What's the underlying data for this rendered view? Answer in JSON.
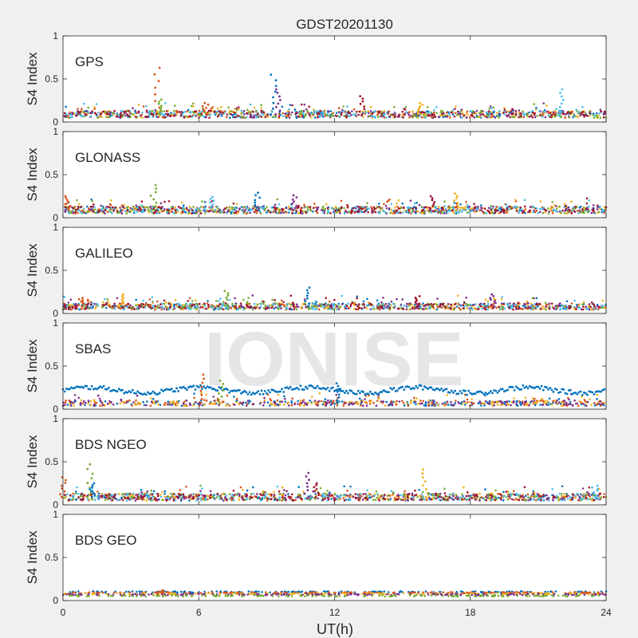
{
  "figure": {
    "title": "GDST20201130",
    "xlabel": "UT(h)",
    "ylabel": "S4 Index",
    "watermark": "IONISE",
    "background": "#f0f0f0",
    "axes_background": "#ffffff",
    "xlim": [
      0,
      24
    ],
    "xticks": [
      0,
      6,
      12,
      18,
      24
    ],
    "ylim": [
      0,
      1
    ],
    "yticks": [
      0,
      0.5,
      1
    ],
    "ytick_labels": [
      "0",
      "0.5",
      "1"
    ]
  },
  "palette": [
    "#0072bd",
    "#d95319",
    "#edb120",
    "#7e2f8e",
    "#77ac30",
    "#4dbeee",
    "#a2142f"
  ],
  "chart_data": [
    {
      "type": "scatter",
      "panel_label": "GPS",
      "xlim": [
        0,
        24
      ],
      "ylim": [
        0,
        1
      ],
      "baseline_s4": 0.09,
      "series_count": 7,
      "spikes": [
        {
          "x": 4.15,
          "y": 0.63
        },
        {
          "x": 4.3,
          "y": 0.26
        },
        {
          "x": 9.3,
          "y": 0.55
        },
        {
          "x": 9.5,
          "y": 0.38
        },
        {
          "x": 13.2,
          "y": 0.3
        },
        {
          "x": 15.8,
          "y": 0.22
        },
        {
          "x": 22.0,
          "y": 0.38
        },
        {
          "x": 6.3,
          "y": 0.22
        }
      ]
    },
    {
      "type": "scatter",
      "panel_label": "GLONASS",
      "xlim": [
        0,
        24
      ],
      "ylim": [
        0,
        1
      ],
      "baseline_s4": 0.09,
      "series_count": 7,
      "spikes": [
        {
          "x": 0.2,
          "y": 0.25
        },
        {
          "x": 4.0,
          "y": 0.38
        },
        {
          "x": 8.6,
          "y": 0.29
        },
        {
          "x": 10.2,
          "y": 0.26
        },
        {
          "x": 16.3,
          "y": 0.25
        },
        {
          "x": 17.4,
          "y": 0.28
        },
        {
          "x": 6.6,
          "y": 0.24
        }
      ]
    },
    {
      "type": "scatter",
      "panel_label": "GALILEO",
      "xlim": [
        0,
        24
      ],
      "ylim": [
        0,
        1
      ],
      "baseline_s4": 0.08,
      "series_count": 7,
      "spikes": [
        {
          "x": 0.8,
          "y": 0.18
        },
        {
          "x": 7.2,
          "y": 0.26
        },
        {
          "x": 10.8,
          "y": 0.3
        },
        {
          "x": 19.0,
          "y": 0.22
        },
        {
          "x": 15.7,
          "y": 0.2
        },
        {
          "x": 2.6,
          "y": 0.22
        }
      ]
    },
    {
      "type": "scatter",
      "panel_label": "SBAS",
      "xlim": [
        0,
        24
      ],
      "ylim": [
        0,
        1
      ],
      "baseline_s4": 0.07,
      "series_count": 4,
      "elevated_series": {
        "name_hint": "blue",
        "mean_s4": 0.22,
        "amplitude": 0.04
      },
      "spikes": [
        {
          "x": 6.2,
          "y": 0.4
        },
        {
          "x": 7.0,
          "y": 0.33
        },
        {
          "x": 12.2,
          "y": 0.3
        }
      ]
    },
    {
      "type": "scatter",
      "panel_label": "BDS NGEO",
      "xlim": [
        0,
        24
      ],
      "ylim": [
        0,
        1
      ],
      "baseline_s4": 0.09,
      "series_count": 7,
      "spikes": [
        {
          "x": 0.0,
          "y": 0.32
        },
        {
          "x": 1.2,
          "y": 0.47
        },
        {
          "x": 1.3,
          "y": 0.25
        },
        {
          "x": 10.8,
          "y": 0.37
        },
        {
          "x": 11.2,
          "y": 0.25
        },
        {
          "x": 16.0,
          "y": 0.41
        },
        {
          "x": 23.5,
          "y": 0.22
        }
      ]
    },
    {
      "type": "scatter",
      "panel_label": "BDS GEO",
      "xlim": [
        0,
        24
      ],
      "ylim": [
        0,
        1
      ],
      "baseline_s4": 0.08,
      "series_count": 5,
      "flat_levels": [
        0.1,
        0.09,
        0.08,
        0.07,
        0.055
      ],
      "spikes": [
        {
          "x": 4.3,
          "y": 0.12
        }
      ]
    }
  ]
}
